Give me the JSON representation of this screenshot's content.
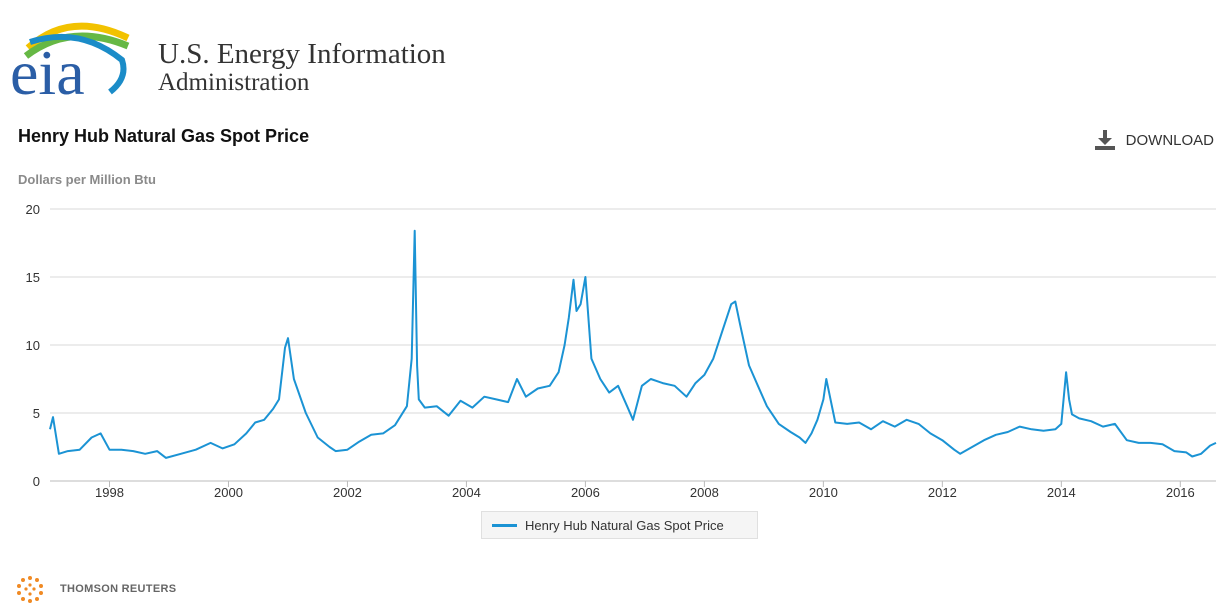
{
  "header": {
    "logo_text": "eia",
    "org_line1": "U.S. Energy Information",
    "org_line2": "Administration"
  },
  "toolbar": {
    "download_label": "DOWNLOAD",
    "download_icon": "download-icon"
  },
  "footer": {
    "credit": "THOMSON REUTERS",
    "credit_icon": "thomson-reuters-logo"
  },
  "colors": {
    "series": "#1b93d4",
    "grid": "#d8d8d8",
    "text": "#333333"
  },
  "chart_data": {
    "type": "line",
    "title": "Henry Hub Natural Gas Spot Price",
    "ylabel": "Dollars per Million Btu",
    "xlabel": "",
    "ylim": [
      0,
      20
    ],
    "yticks": [
      0,
      5,
      10,
      15,
      20
    ],
    "xlim": [
      1997.0,
      2016.6
    ],
    "xticks": [
      "1998",
      "2000",
      "2002",
      "2004",
      "2006",
      "2008",
      "2010",
      "2012",
      "2014",
      "2016"
    ],
    "grid": true,
    "legend_position": "bottom-center",
    "series": [
      {
        "name": "Henry Hub Natural Gas Spot Price",
        "color": "#1b93d4",
        "x": [
          1997.0,
          1997.05,
          1997.15,
          1997.3,
          1997.5,
          1997.7,
          1997.85,
          1998.0,
          1998.2,
          1998.4,
          1998.6,
          1998.8,
          1998.95,
          1999.2,
          1999.45,
          1999.7,
          1999.9,
          2000.1,
          2000.3,
          2000.45,
          2000.6,
          2000.75,
          2000.85,
          2000.95,
          2001.0,
          2001.1,
          2001.3,
          2001.5,
          2001.7,
          2001.8,
          2002.0,
          2002.2,
          2002.4,
          2002.6,
          2002.8,
          2003.0,
          2003.08,
          2003.13,
          2003.17,
          2003.2,
          2003.3,
          2003.5,
          2003.7,
          2003.9,
          2004.1,
          2004.3,
          2004.5,
          2004.7,
          2004.85,
          2005.0,
          2005.2,
          2005.4,
          2005.55,
          2005.65,
          2005.72,
          2005.8,
          2005.85,
          2005.92,
          2006.0,
          2006.1,
          2006.25,
          2006.4,
          2006.55,
          2006.7,
          2006.8,
          2006.95,
          2007.1,
          2007.3,
          2007.5,
          2007.7,
          2007.85,
          2008.0,
          2008.15,
          2008.3,
          2008.45,
          2008.52,
          2008.6,
          2008.75,
          2008.9,
          2009.05,
          2009.25,
          2009.45,
          2009.6,
          2009.7,
          2009.8,
          2009.9,
          2010.0,
          2010.05,
          2010.2,
          2010.4,
          2010.6,
          2010.8,
          2011.0,
          2011.2,
          2011.4,
          2011.6,
          2011.8,
          2012.0,
          2012.2,
          2012.3,
          2012.5,
          2012.7,
          2012.9,
          2013.1,
          2013.3,
          2013.5,
          2013.7,
          2013.9,
          2014.0,
          2014.08,
          2014.13,
          2014.18,
          2014.3,
          2014.5,
          2014.7,
          2014.9,
          2015.1,
          2015.3,
          2015.5,
          2015.7,
          2015.9,
          2016.1,
          2016.2,
          2016.35,
          2016.5,
          2016.6
        ],
        "values": [
          3.8,
          4.7,
          2.0,
          2.2,
          2.3,
          3.2,
          3.5,
          2.3,
          2.3,
          2.2,
          2.0,
          2.2,
          1.7,
          2.0,
          2.3,
          2.8,
          2.4,
          2.7,
          3.5,
          4.3,
          4.5,
          5.3,
          6.0,
          9.8,
          10.5,
          7.5,
          5.0,
          3.2,
          2.5,
          2.2,
          2.3,
          2.9,
          3.4,
          3.5,
          4.1,
          5.5,
          9.0,
          18.4,
          8.5,
          6.0,
          5.4,
          5.5,
          4.8,
          5.9,
          5.4,
          6.2,
          6.0,
          5.8,
          7.5,
          6.2,
          6.8,
          7.0,
          8.0,
          10.0,
          12.0,
          14.8,
          12.5,
          13.0,
          15.0,
          9.0,
          7.5,
          6.5,
          7.0,
          5.5,
          4.5,
          7.0,
          7.5,
          7.2,
          7.0,
          6.2,
          7.2,
          7.8,
          9.0,
          11.0,
          13.0,
          13.2,
          11.5,
          8.5,
          7.0,
          5.5,
          4.2,
          3.6,
          3.2,
          2.8,
          3.5,
          4.5,
          6.0,
          7.5,
          4.3,
          4.2,
          4.3,
          3.8,
          4.4,
          4.0,
          4.5,
          4.2,
          3.5,
          3.0,
          2.3,
          2.0,
          2.5,
          3.0,
          3.4,
          3.6,
          4.0,
          3.8,
          3.7,
          3.8,
          4.2,
          8.0,
          6.0,
          4.9,
          4.6,
          4.4,
          4.0,
          4.2,
          3.0,
          2.8,
          2.8,
          2.7,
          2.2,
          2.1,
          1.8,
          2.0,
          2.6,
          2.8
        ]
      }
    ]
  }
}
